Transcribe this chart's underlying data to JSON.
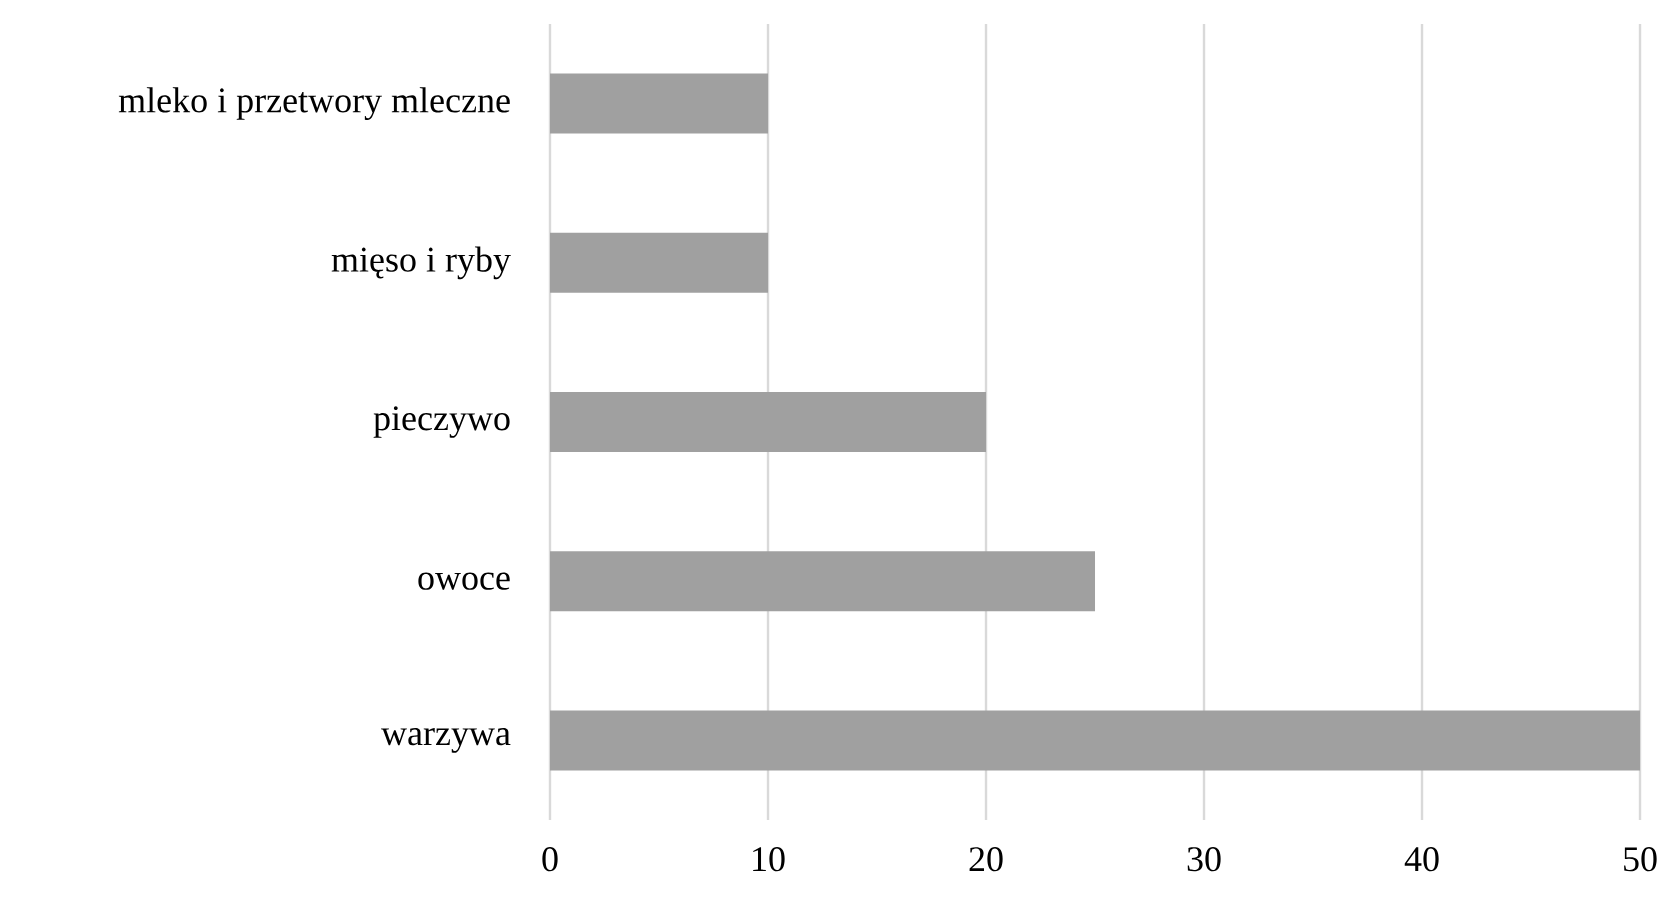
{
  "chart_data": {
    "type": "bar",
    "orientation": "horizontal",
    "categories": [
      "mleko i przetwory mleczne",
      "mięso i ryby",
      "pieczywo",
      "owoce",
      "warzywa"
    ],
    "values": [
      10,
      10,
      20,
      25,
      50
    ],
    "color": "#a0a0a0",
    "xlim": [
      0,
      50
    ],
    "xticks": [
      0,
      10,
      20,
      30,
      40,
      50
    ],
    "grid": "x"
  }
}
